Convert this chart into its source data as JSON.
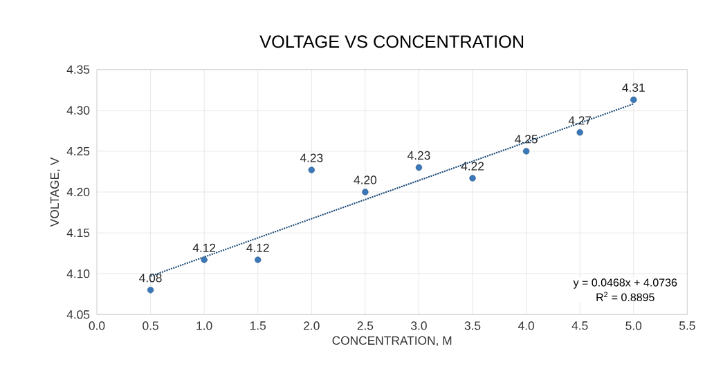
{
  "chart_data": {
    "type": "scatter",
    "title": "VOLTAGE VS CONCENTRATION",
    "xlabel": "CONCENTRATION, M",
    "ylabel": "VOLTAGE, V",
    "xlim": [
      0,
      5.5
    ],
    "ylim": [
      4.05,
      4.35
    ],
    "xticks": [
      {
        "value": 0,
        "label": "0.0"
      },
      {
        "value": 0.5,
        "label": "0.5"
      },
      {
        "value": 1,
        "label": "1.0"
      },
      {
        "value": 1.5,
        "label": "1.5"
      },
      {
        "value": 2,
        "label": "2.0"
      },
      {
        "value": 2.5,
        "label": "2.5"
      },
      {
        "value": 3,
        "label": "3.0"
      },
      {
        "value": 3.5,
        "label": "3.5"
      },
      {
        "value": 4,
        "label": "4.0"
      },
      {
        "value": 4.5,
        "label": "4.5"
      },
      {
        "value": 5,
        "label": "5.0"
      },
      {
        "value": 5.5,
        "label": "5.5"
      }
    ],
    "yticks": [
      {
        "value": 4.05,
        "label": "4.05"
      },
      {
        "value": 4.1,
        "label": "4.10"
      },
      {
        "value": 4.15,
        "label": "4.15"
      },
      {
        "value": 4.2,
        "label": "4.20"
      },
      {
        "value": 4.25,
        "label": "4.25"
      },
      {
        "value": 4.3,
        "label": "4.30"
      },
      {
        "value": 4.35,
        "label": "4.35"
      }
    ],
    "grid": true,
    "marker": "circle",
    "series": [
      {
        "color": "#3a78b8",
        "x": [
          0.5,
          1,
          1.5,
          2,
          2.5,
          3,
          3.5,
          4,
          4.5,
          5
        ],
        "values": [
          4.08,
          4.117,
          4.117,
          4.227,
          4.2,
          4.23,
          4.217,
          4.25,
          4.273,
          4.313
        ],
        "value_labels": [
          "4.08",
          "4.12",
          "4.12",
          "4.23",
          "4.20",
          "4.23",
          "4.22",
          "4.25",
          "4.27",
          "4.31"
        ]
      },
      {
        "type": "line",
        "color": "#1f4e79",
        "line_style": "dotted",
        "marker": "none",
        "x": [
          0.5,
          5
        ],
        "values": [
          4.097,
          4.308
        ]
      }
    ],
    "annotations": [
      "y = 0.0468x + 4.0736",
      "R$^{2}$ = 0.8895"
    ]
  }
}
